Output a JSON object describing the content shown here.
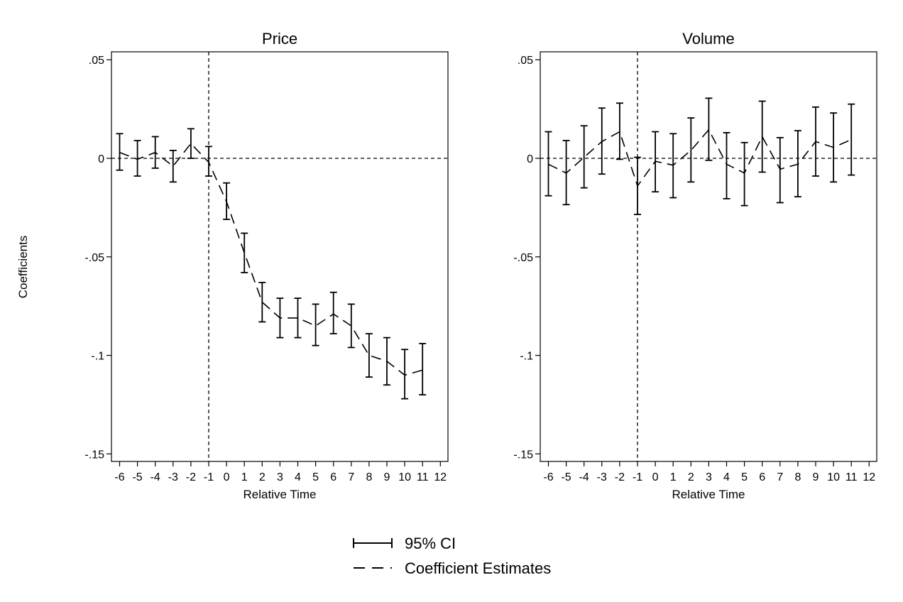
{
  "figure": {
    "ylabel": "Coefficients",
    "legend": {
      "ci_label": "95% CI",
      "est_label": "Coefficient Estimates",
      "placement": "bottom-center"
    }
  },
  "chart_data": [
    {
      "type": "line",
      "title": "Price",
      "xlabel": "Relative Time",
      "ylabel": "Coefficients",
      "xlim": [
        -6,
        12
      ],
      "ylim": [
        -0.15,
        0.05
      ],
      "x_ticks": [
        -6,
        -5,
        -4,
        -3,
        -2,
        -1,
        0,
        1,
        2,
        3,
        4,
        5,
        6,
        7,
        8,
        9,
        10,
        11,
        12
      ],
      "x_tick_labels": [
        "-6",
        "-5",
        "-4",
        "-3",
        "-2",
        "-1",
        "0",
        "1",
        "2",
        "3",
        "4",
        "5",
        "6",
        "7",
        "8",
        "9",
        "10",
        "11",
        "12"
      ],
      "y_ticks": [
        0.05,
        0,
        -0.05,
        -0.1,
        -0.15
      ],
      "y_tick_labels": [
        ".05",
        "0",
        "-.05",
        "-.1",
        "-.15"
      ],
      "reference_lines": {
        "x": -1,
        "y": 0
      },
      "grid": false,
      "series": [
        {
          "name": "Coefficient Estimates",
          "x": [
            -6,
            -5,
            -4,
            -3,
            -2,
            -1,
            0,
            1,
            2,
            3,
            4,
            5,
            6,
            7,
            8,
            9,
            10,
            11
          ],
          "values": [
            0.003,
            -0.0005,
            0.003,
            -0.004,
            0.0075,
            -0.002,
            -0.022,
            -0.048,
            -0.073,
            -0.081,
            -0.081,
            -0.085,
            -0.079,
            -0.085,
            -0.1,
            -0.103,
            -0.11,
            -0.1075
          ],
          "ci_low": [
            -0.006,
            -0.009,
            -0.005,
            -0.012,
            0.0,
            -0.009,
            -0.031,
            -0.058,
            -0.083,
            -0.091,
            -0.091,
            -0.095,
            -0.089,
            -0.096,
            -0.111,
            -0.115,
            -0.122,
            -0.12
          ],
          "ci_high": [
            0.0125,
            0.009,
            0.011,
            0.004,
            0.015,
            0.006,
            -0.0125,
            -0.038,
            -0.063,
            -0.071,
            -0.071,
            -0.074,
            -0.068,
            -0.074,
            -0.089,
            -0.091,
            -0.097,
            -0.094
          ]
        }
      ]
    },
    {
      "type": "line",
      "title": "Volume",
      "xlabel": "Relative Time",
      "ylabel": "Coefficients",
      "xlim": [
        -6,
        12
      ],
      "ylim": [
        -0.15,
        0.05
      ],
      "x_ticks": [
        -6,
        -5,
        -4,
        -3,
        -2,
        -1,
        0,
        1,
        2,
        3,
        4,
        5,
        6,
        7,
        8,
        9,
        10,
        11,
        12
      ],
      "x_tick_labels": [
        "-6",
        "-5",
        "-4",
        "-3",
        "-2",
        "-1",
        "0",
        "1",
        "2",
        "3",
        "4",
        "5",
        "6",
        "7",
        "8",
        "9",
        "10",
        "11",
        "12"
      ],
      "y_ticks": [
        0.05,
        0,
        -0.05,
        -0.1,
        -0.15
      ],
      "y_tick_labels": [
        ".05",
        "0",
        "-.05",
        "-.1",
        "-.15"
      ],
      "reference_lines": {
        "x": -1,
        "y": 0
      },
      "grid": false,
      "series": [
        {
          "name": "Coefficient Estimates",
          "x": [
            -6,
            -5,
            -4,
            -3,
            -2,
            -1,
            0,
            1,
            2,
            3,
            4,
            5,
            6,
            7,
            8,
            9,
            10,
            11
          ],
          "values": [
            -0.003,
            -0.0075,
            0.0005,
            0.0085,
            0.0135,
            -0.014,
            -0.0015,
            -0.0035,
            0.004,
            0.0145,
            -0.003,
            -0.0075,
            0.011,
            -0.0055,
            -0.003,
            0.0085,
            0.0055,
            0.0095
          ],
          "ci_low": [
            -0.019,
            -0.0235,
            -0.015,
            -0.008,
            -0.0005,
            -0.0285,
            -0.017,
            -0.02,
            -0.012,
            -0.001,
            -0.0205,
            -0.024,
            -0.007,
            -0.0225,
            -0.0195,
            -0.009,
            -0.012,
            -0.0085
          ],
          "ci_high": [
            0.0135,
            0.009,
            0.0165,
            0.0255,
            0.028,
            0.0005,
            0.0135,
            0.0125,
            0.0205,
            0.0305,
            0.013,
            0.008,
            0.029,
            0.0105,
            0.014,
            0.026,
            0.023,
            0.0275
          ]
        }
      ]
    }
  ]
}
